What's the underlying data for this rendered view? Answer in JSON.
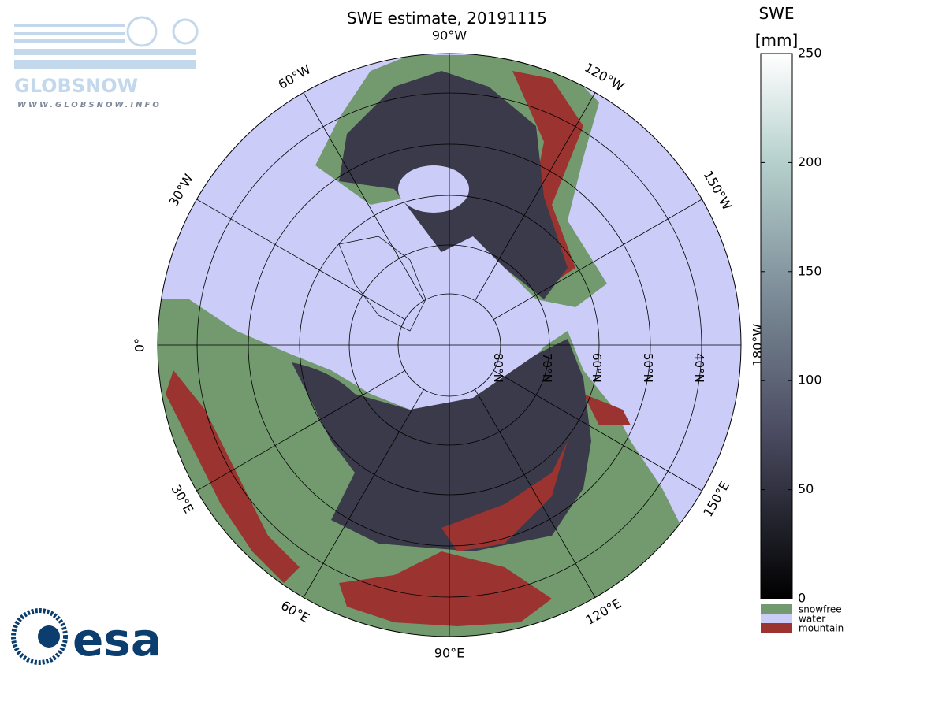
{
  "header": {
    "title": "SWE estimate, 20191115"
  },
  "map": {
    "meridian_labels": [
      "0°",
      "30°E",
      "60°E",
      "90°E",
      "120°E",
      "150°E",
      "180°W",
      "150°W",
      "120°W",
      "90°W",
      "60°W",
      "30°W"
    ],
    "parallel_labels": [
      "80°N",
      "70°N",
      "60°N",
      "50°N",
      "40°N"
    ]
  },
  "colorbar": {
    "title": "SWE",
    "unit": "[mm]",
    "ylim": [
      0,
      250
    ],
    "yticks": [
      0,
      50,
      100,
      150,
      200,
      250
    ]
  },
  "legend": [
    {
      "name": "snowfree",
      "color": "#739a6e"
    },
    {
      "name": "water",
      "color": "#ccccf9"
    },
    {
      "name": "mountain",
      "color": "#9b3330"
    }
  ],
  "logos": {
    "globsnow": "GLOBSNOW",
    "url": "WWW.GLOBSNOW.INFO",
    "esa": "esa"
  }
}
